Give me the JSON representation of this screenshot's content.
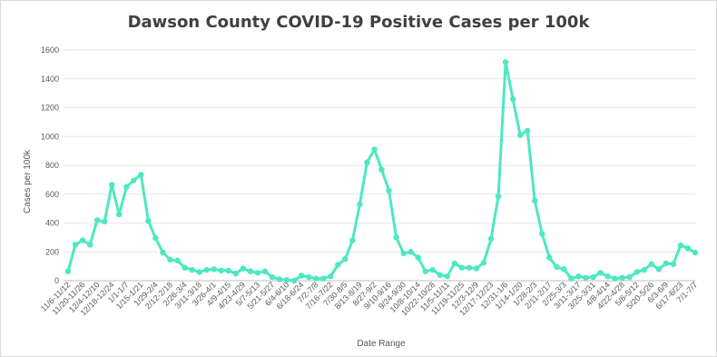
{
  "chart_data": {
    "type": "line",
    "title": "Dawson County COVID-19 Positive Cases per 100k",
    "xlabel": "Date Range",
    "ylabel": "Cases per 100k",
    "ylim": [
      0,
      1600
    ],
    "y_ticks": [
      0,
      200,
      400,
      600,
      800,
      1000,
      1200,
      1400,
      1600
    ],
    "grid": "horizontal",
    "legend": "none",
    "line_color": "#4de8c2",
    "x_tick_labels": [
      "11/6-11/12",
      "11/20-11/26",
      "12/4-12/10",
      "12/18-12/24",
      "1/1-1/7",
      "1/15-1/21",
      "1/29-2/4",
      "2/12-2/18",
      "2/26-3/4",
      "3/11-3/18",
      "3/26-4/1",
      "4/9-4/15",
      "4/23-4/29",
      "5/7-5/13",
      "5/21-5/27",
      "6/4-6/10",
      "6/18-6/24",
      "7/2-7/8",
      "7/16-7/22",
      "7/30-8/5",
      "8/13-8/19",
      "8/27-9/2",
      "9/10-9/16",
      "9/24-9/30",
      "10/8-10/14",
      "10/22-10/28",
      "11/5-11/11",
      "11/19-11/25",
      "12/3-12/9",
      "12/17-12/23",
      "12/31-1/6",
      "1/14-1/20",
      "1/28-2/3",
      "2/11-2/17",
      "2/25-3/3",
      "3/11-3/17",
      "3/25-3/31",
      "4/8-4/14",
      "4/22-4/28",
      "5/6-5/12",
      "5/20-5/26",
      "6/3-6/9",
      "6/17-6/23",
      "7/1-7/7"
    ],
    "y_values": [
      65,
      250,
      280,
      250,
      420,
      410,
      665,
      460,
      650,
      695,
      735,
      415,
      295,
      195,
      145,
      140,
      90,
      75,
      60,
      75,
      80,
      70,
      70,
      50,
      85,
      65,
      55,
      65,
      25,
      10,
      5,
      0,
      35,
      25,
      15,
      15,
      30,
      110,
      150,
      280,
      530,
      820,
      910,
      770,
      625,
      300,
      190,
      200,
      160,
      65,
      75,
      40,
      30,
      120,
      90,
      90,
      85,
      125,
      290,
      585,
      1515,
      1260,
      1010,
      1040,
      555,
      325,
      160,
      95,
      80,
      15,
      30,
      20,
      25,
      55,
      30,
      15,
      20,
      25,
      60,
      75,
      115,
      80,
      120,
      115,
      245,
      225,
      195
    ]
  }
}
